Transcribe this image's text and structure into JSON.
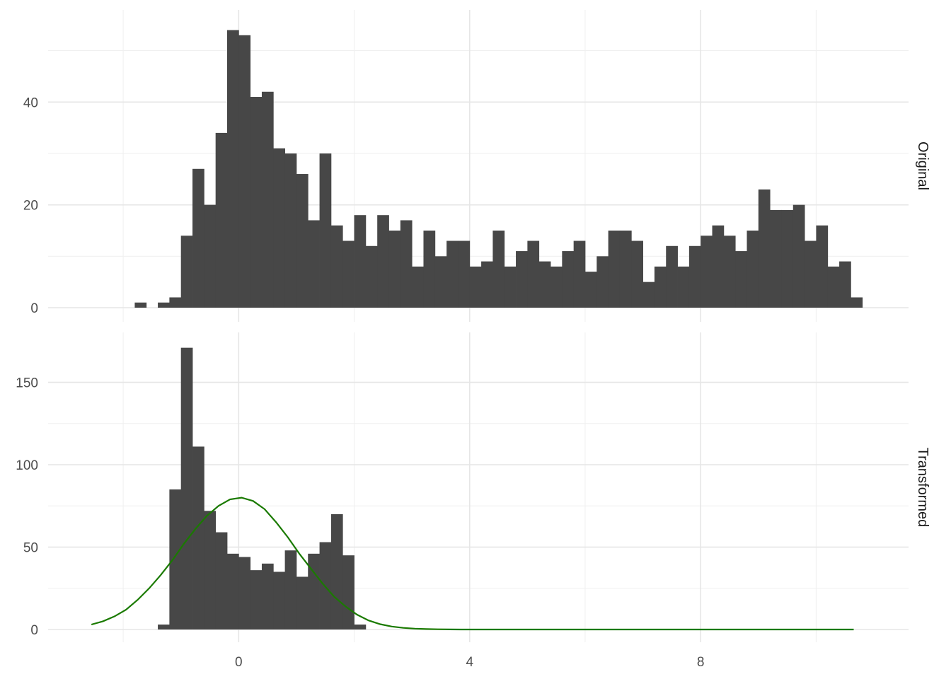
{
  "chart_data": {
    "type": "histogram",
    "layout": "faceted-rows",
    "title": "",
    "xlabel": "",
    "ylabel": "",
    "xlim": [
      -3.3,
      11.6
    ],
    "x_breaks": [
      0,
      4,
      8
    ],
    "x_minor_breaks": [
      -2,
      2,
      6,
      10
    ],
    "bin_width": 0.2,
    "grid": true,
    "legend": "none",
    "bar_color": "#474747",
    "line_color": "#1a7a00",
    "panels": [
      {
        "strip": "Original",
        "ylim": [
          0,
          56
        ],
        "y_breaks": [
          0,
          20,
          40
        ],
        "y_minor_breaks": [
          10,
          30,
          50
        ],
        "bin_start": -1.8,
        "counts": [
          1,
          0,
          1,
          2,
          14,
          27,
          20,
          34,
          54,
          53,
          41,
          42,
          31,
          30,
          26,
          17,
          30,
          16,
          13,
          18,
          12,
          18,
          15,
          17,
          8,
          15,
          10,
          13,
          13,
          8,
          9,
          15,
          8,
          11,
          13,
          9,
          8,
          11,
          13,
          7,
          10,
          15,
          15,
          13,
          5,
          8,
          12,
          8,
          12,
          14,
          16,
          14,
          11,
          15,
          23,
          19,
          19,
          20,
          13,
          16,
          8,
          9,
          2
        ]
      },
      {
        "strip": "Transformed",
        "ylim": [
          0,
          176
        ],
        "y_breaks": [
          0,
          50,
          100,
          150
        ],
        "y_minor_breaks": [
          25,
          75,
          125
        ],
        "bin_start": -1.4,
        "counts": [
          3,
          85,
          171,
          111,
          72,
          59,
          46,
          44,
          36,
          40,
          35,
          48,
          32,
          46,
          53,
          70,
          45,
          3
        ],
        "density_curve": {
          "x": [
            -2.55,
            -2.35,
            -2.15,
            -1.95,
            -1.75,
            -1.55,
            -1.35,
            -1.15,
            -0.95,
            -0.75,
            -0.55,
            -0.35,
            -0.15,
            0.05,
            0.25,
            0.45,
            0.65,
            0.85,
            1.05,
            1.25,
            1.45,
            1.65,
            1.85,
            2.05,
            2.25,
            2.45,
            2.65,
            2.85,
            3.05,
            3.25,
            3.45,
            3.65,
            3.85,
            4.05,
            4.3,
            5,
            6,
            7,
            8,
            9,
            10,
            10.65
          ],
          "y": [
            3,
            5,
            8,
            12,
            18,
            25,
            33,
            42,
            52,
            61,
            69,
            75,
            79,
            80,
            78,
            73,
            65,
            56,
            46,
            37,
            28,
            20,
            14,
            9,
            5.5,
            3.2,
            1.8,
            1,
            0.5,
            0.25,
            0.12,
            0.05,
            0.02,
            0,
            0,
            0,
            0,
            0,
            0,
            0,
            0,
            0
          ]
        }
      }
    ]
  }
}
